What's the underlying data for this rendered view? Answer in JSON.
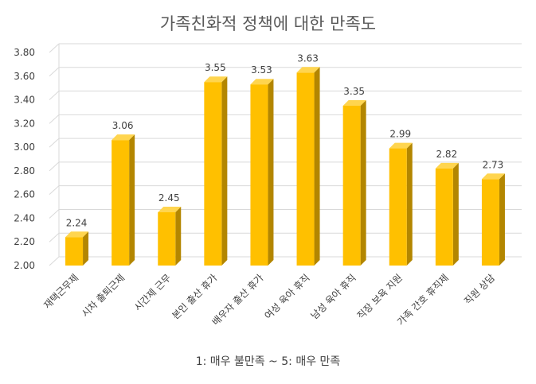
{
  "chart_data": {
    "type": "bar",
    "title": "가족친화적 정책에 대한 만족도",
    "note": "1: 매우 불만족 ~ 5: 매우 만족",
    "categories": [
      "재택근무제",
      "시차 출퇴근제",
      "시간제 근무",
      "본인 출산 휴가",
      "배우자 출산 휴가",
      "여성 육아 휴직",
      "남성 육아 휴직",
      "직장 보육 지원",
      "가족 간호 휴직제",
      "직원 상담"
    ],
    "values": [
      2.24,
      3.06,
      2.45,
      3.55,
      3.53,
      3.63,
      3.35,
      2.99,
      2.82,
      2.73
    ],
    "data_labels": [
      "2.24",
      "3.06",
      "2.45",
      "3.55",
      "3.53",
      "3.63",
      "3.35",
      "2.99",
      "2.82",
      "2.73"
    ],
    "yticks": [
      "2.00",
      "2.20",
      "2.40",
      "2.60",
      "2.80",
      "3.00",
      "3.20",
      "3.40",
      "3.60",
      "3.80"
    ],
    "ylim": [
      2.0,
      3.8
    ],
    "grid": true,
    "legend": "none",
    "bar_style": "3d",
    "colors": {
      "front": "#FFC000",
      "side": "#B38600",
      "top": "#FFD54F",
      "grid": "#D9D9D9",
      "text": "#404040"
    }
  }
}
